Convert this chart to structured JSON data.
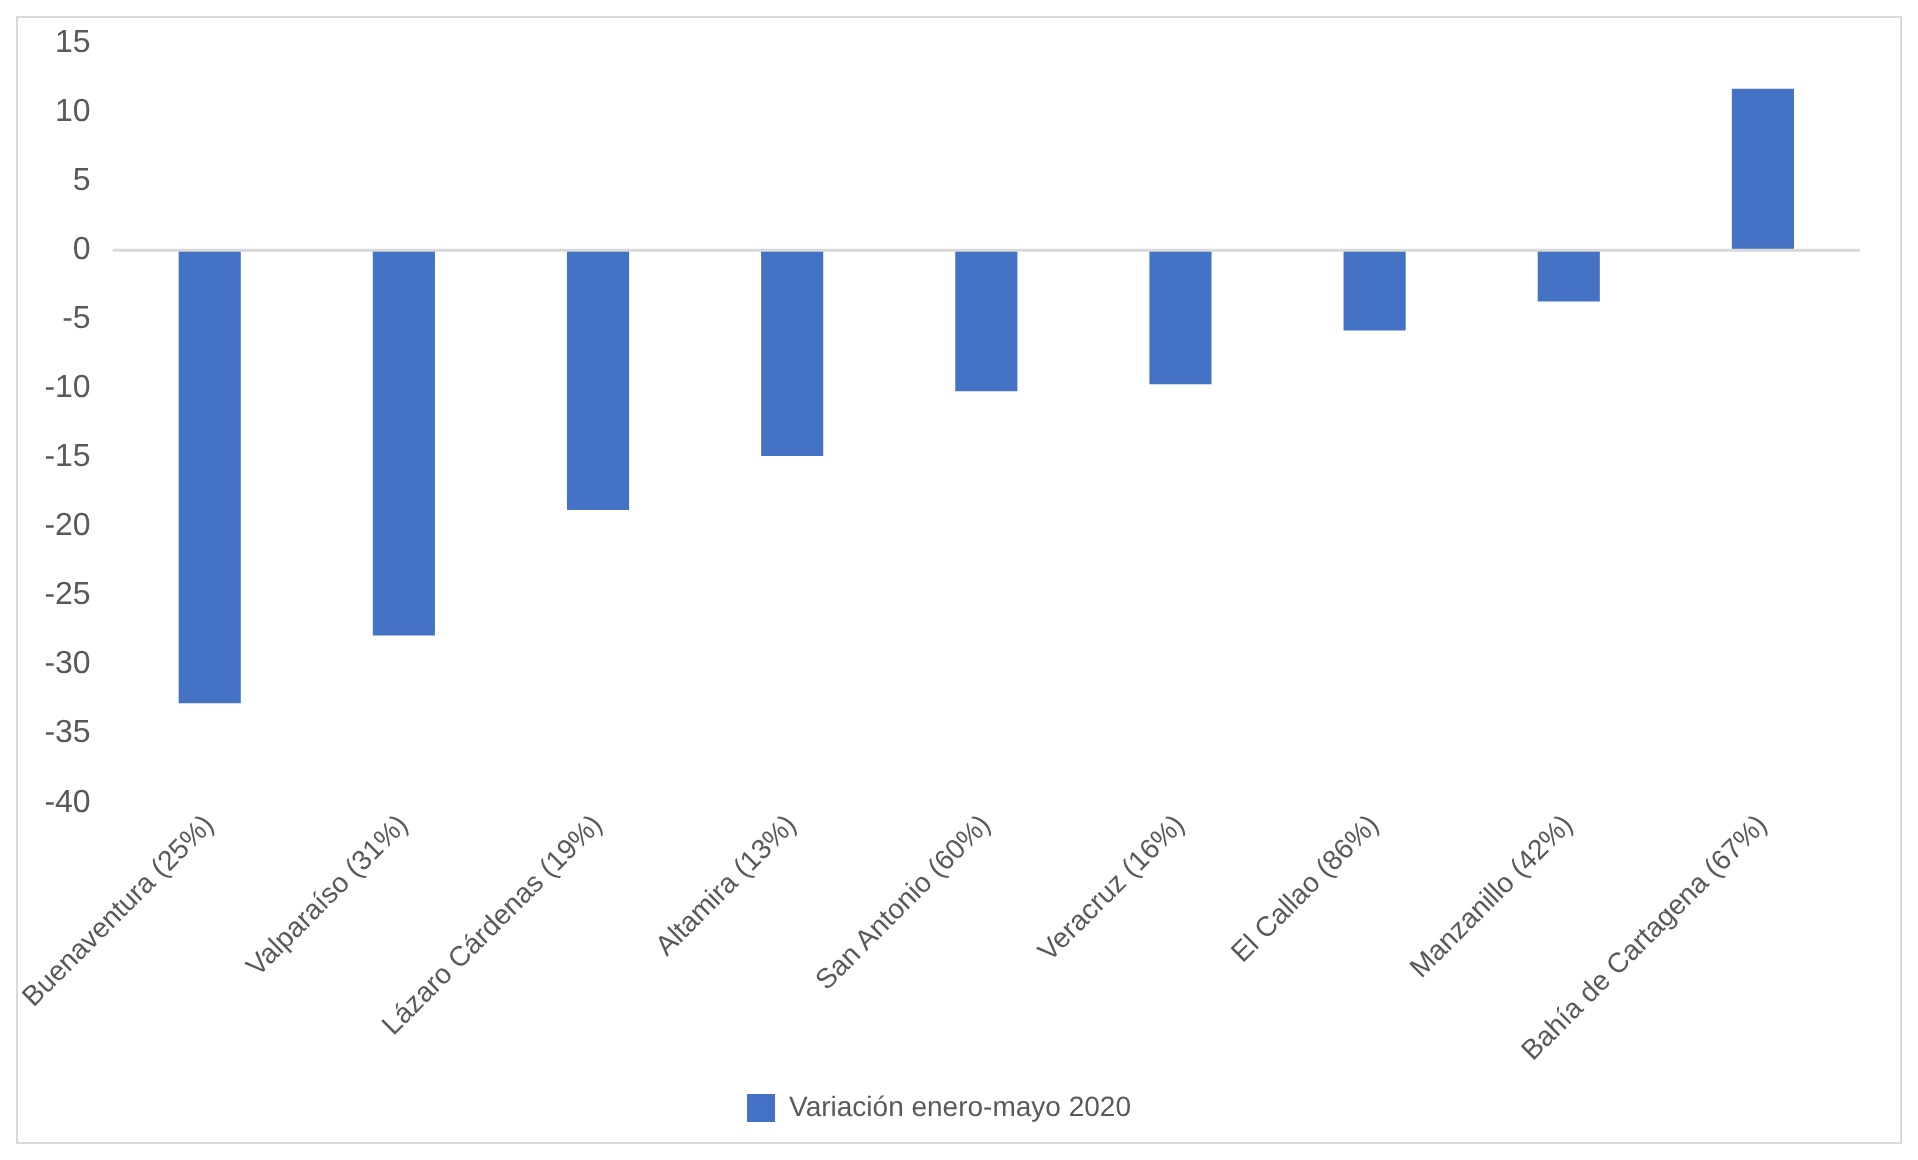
{
  "chart_data": {
    "type": "bar",
    "categories": [
      "Buenaventura (25%)",
      "Valparaíso (31%)",
      "Lázaro Cárdenas (19%)",
      "Altamira (13%)",
      "San Antonio (60%)",
      "Veracruz (16%)",
      "El Callao (86%)",
      "Manzanillo (42%)",
      "Bahía de Cartagena (67%)"
    ],
    "series": [
      {
        "name": "Variación enero-mayo 2020",
        "color": "#4472c4",
        "values": [
          -32.8,
          -27.9,
          -18.8,
          -14.9,
          -10.2,
          -9.7,
          -5.8,
          -3.7,
          11.7
        ]
      }
    ],
    "ylim": [
      -40,
      15
    ],
    "yticks": [
      15,
      10,
      5,
      0,
      -5,
      -10,
      -15,
      -20,
      -25,
      -30,
      -35,
      -40
    ],
    "grid": false,
    "ref_lines": [
      {
        "axis": "y",
        "value": 0,
        "color": "#d9d9d9"
      }
    ],
    "legend": "bottom"
  }
}
